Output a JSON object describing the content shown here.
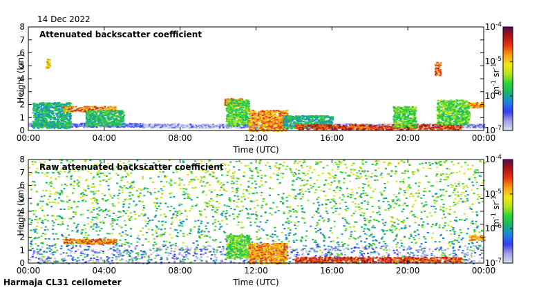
{
  "date_label": "14 Dec 2022",
  "footer_label": "Harmaja CL31 ceilometer",
  "colors": {
    "ramp": [
      "#dcdcf4",
      "#9fa0e6",
      "#3a3aee",
      "#1b86e6",
      "#19b36a",
      "#2ed13a",
      "#b8e61a",
      "#f0e61a",
      "#f5a014",
      "#e23a12",
      "#b4120e",
      "#500c5a"
    ]
  },
  "chart_data": [
    {
      "type": "heatmap",
      "title": "Attenuated backscatter coefficient",
      "xlabel": "Time (UTC)",
      "ylabel": "Height (km)",
      "xlim": [
        0,
        24
      ],
      "ylim": [
        0,
        8
      ],
      "xticks": [
        "00:00",
        "04:00",
        "08:00",
        "12:00",
        "16:00",
        "20:00",
        "00:00"
      ],
      "yticks": [
        "0",
        "1",
        "2",
        "3",
        "4",
        "5",
        "6",
        "7",
        "8"
      ],
      "colorbar": {
        "scale": "log",
        "range": [
          1e-07,
          0.0001
        ],
        "ticks": [
          {
            "base": "10",
            "exp": "-7",
            "value": -7
          },
          {
            "base": "10",
            "exp": "-6",
            "value": -6
          },
          {
            "base": "10",
            "exp": "-5",
            "value": -5
          },
          {
            "base": "10",
            "exp": "-4",
            "value": -4
          }
        ],
        "unit_parts": [
          {
            "t": "m",
            "sup": "-1"
          },
          {
            "t": "sr",
            "sup": "-1"
          }
        ]
      },
      "features": [
        {
          "kind": "boundary_layer",
          "t": [
            0,
            6
          ],
          "h": [
            0.3,
            0.6
          ],
          "level": -6.6
        },
        {
          "kind": "boundary_layer",
          "t": [
            6,
            24
          ],
          "h": [
            0.25,
            0.55
          ],
          "level": -6.8
        },
        {
          "kind": "cloud_layer",
          "t": [
            0.2,
            2.2
          ],
          "h": [
            0.2,
            2.2
          ],
          "level": -5.9
        },
        {
          "kind": "cloud_base",
          "t": [
            1.8,
            4.6
          ],
          "h": [
            1.5,
            1.9
          ],
          "level": -4.7
        },
        {
          "kind": "cloud_layer",
          "t": [
            3.0,
            5.0
          ],
          "h": [
            0.4,
            1.6
          ],
          "level": -5.8
        },
        {
          "kind": "cloud_base",
          "t": [
            10.3,
            11.3
          ],
          "h": [
            1.9,
            2.5
          ],
          "level": -4.7
        },
        {
          "kind": "cloud_layer",
          "t": [
            10.4,
            11.6
          ],
          "h": [
            0.4,
            2.4
          ],
          "level": -5.6
        },
        {
          "kind": "precip",
          "t": [
            11.6,
            13.6
          ],
          "h": [
            0.0,
            1.6
          ],
          "level": -4.8
        },
        {
          "kind": "cloud_layer",
          "t": [
            13.4,
            16.0
          ],
          "h": [
            0.2,
            1.2
          ],
          "level": -5.9
        },
        {
          "kind": "cloud_base",
          "t": [
            14.0,
            22.8
          ],
          "h": [
            0.1,
            0.5
          ],
          "level": -4.5
        },
        {
          "kind": "cloud_layer",
          "t": [
            19.2,
            20.4
          ],
          "h": [
            0.3,
            1.9
          ],
          "level": -5.6
        },
        {
          "kind": "cloud_layer",
          "t": [
            21.5,
            23.2
          ],
          "h": [
            0.5,
            2.4
          ],
          "level": -5.6
        },
        {
          "kind": "cloud_base",
          "t": [
            23.2,
            24.0
          ],
          "h": [
            1.8,
            2.2
          ],
          "level": -4.8
        },
        {
          "kind": "cloud_base",
          "t": [
            21.4,
            21.7
          ],
          "h": [
            4.3,
            5.3
          ],
          "level": -4.6
        },
        {
          "kind": "cloud_base",
          "t": [
            0.9,
            1.1
          ],
          "h": [
            4.8,
            5.6
          ],
          "level": -5.0
        }
      ]
    },
    {
      "type": "heatmap",
      "title": "Raw attenuated backscatter coefficient",
      "xlabel": "Time (UTC)",
      "ylabel": "Height (km)",
      "xlim": [
        0,
        24
      ],
      "ylim": [
        0,
        8
      ],
      "xticks": [
        "00:00",
        "04:00",
        "08:00",
        "12:00",
        "16:00",
        "20:00",
        "00:00"
      ],
      "yticks": [
        "0",
        "1",
        "2",
        "3",
        "4",
        "5",
        "6",
        "7",
        "8"
      ],
      "colorbar": {
        "scale": "log",
        "range": [
          1e-07,
          0.0001
        ],
        "ticks": [
          {
            "base": "10",
            "exp": "-7",
            "value": -7
          },
          {
            "base": "10",
            "exp": "-6",
            "value": -6
          },
          {
            "base": "10",
            "exp": "-5",
            "value": -5
          },
          {
            "base": "10",
            "exp": "-4",
            "value": -4
          }
        ],
        "unit_parts": [
          {
            "t": "m",
            "sup": "-1"
          },
          {
            "t": "sr",
            "sup": "-1"
          }
        ]
      },
      "features": [
        {
          "kind": "noise_background",
          "t": [
            0,
            24
          ],
          "h": [
            0,
            8
          ],
          "level": -5.6
        },
        {
          "kind": "quiet_band",
          "t": [
            0,
            24
          ],
          "h": [
            0.0,
            1.4
          ],
          "level": -6.7
        },
        {
          "kind": "cloud_base",
          "t": [
            1.8,
            4.6
          ],
          "h": [
            1.5,
            1.9
          ],
          "level": -4.7
        },
        {
          "kind": "cloud_layer",
          "t": [
            10.4,
            11.6
          ],
          "h": [
            0.4,
            2.2
          ],
          "level": -5.6
        },
        {
          "kind": "precip",
          "t": [
            11.6,
            13.6
          ],
          "h": [
            0.0,
            1.6
          ],
          "level": -4.8
        },
        {
          "kind": "cloud_base",
          "t": [
            14.0,
            22.8
          ],
          "h": [
            0.1,
            0.5
          ],
          "level": -4.5
        },
        {
          "kind": "cloud_base",
          "t": [
            23.2,
            24.0
          ],
          "h": [
            1.8,
            2.2
          ],
          "level": -4.8
        }
      ]
    }
  ]
}
